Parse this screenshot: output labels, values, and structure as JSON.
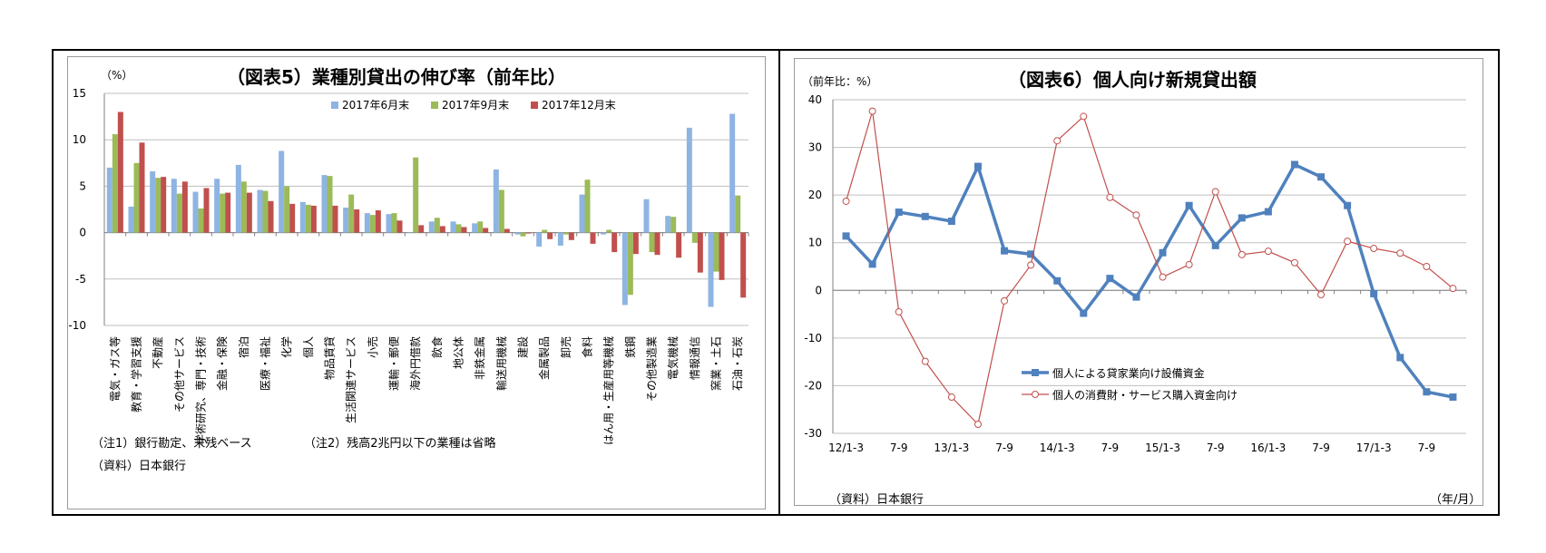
{
  "figure5": {
    "title": "（図表5）業種別貸出の伸び率（前年比）",
    "unit": "（%）",
    "notes": [
      "（注1）銀行勘定、末残ベース",
      "（注2）残高2兆円以下の業種は省略"
    ],
    "source": "（資料）日本銀行"
  },
  "figure6": {
    "title": "（図表6）個人向け新規貸出額",
    "unit": "（前年比：%）",
    "source": "（資料）日本銀行",
    "xunit": "（年/月）"
  },
  "chart_data": [
    {
      "type": "bar",
      "title": "（図表5）業種別貸出の伸び率（前年比）",
      "ylabel": "（%）",
      "ylim": [
        -10,
        15
      ],
      "yticks": [
        -10,
        -5,
        0,
        5,
        10,
        15
      ],
      "grid": true,
      "legend_position": "top-right",
      "categories": [
        "電気・ガス等",
        "教育・学習支援",
        "不動産",
        "その他サービス",
        "学術研究、専門・技術",
        "金融・保険",
        "宿泊",
        "医療・福祉",
        "化学",
        "個人",
        "物品賃貸",
        "生活関連サービス",
        "小売",
        "運輸・郵便",
        "海外円借款",
        "飲食",
        "地公体",
        "非鉄金属",
        "輸送用機械",
        "建設",
        "金属製品",
        "卸売",
        "食料",
        "はん用・生産用等機械",
        "鉄鋼",
        "その他製造業",
        "電気機械",
        "情報通信",
        "窯業・土石",
        "石油・石炭"
      ],
      "series": [
        {
          "name": "2017年6月末",
          "color": "#8eb4e3",
          "values": [
            7.0,
            2.8,
            6.6,
            5.8,
            4.4,
            5.8,
            7.3,
            4.6,
            8.8,
            3.3,
            6.2,
            2.7,
            2.1,
            2.0,
            0.0,
            1.2,
            1.2,
            1.0,
            6.8,
            -0.2,
            -1.5,
            -1.4,
            4.1,
            -0.2,
            -7.8,
            3.6,
            1.8,
            11.3,
            -8.0,
            12.8
          ]
        },
        {
          "name": "2017年9月末",
          "color": "#9bbb59",
          "values": [
            10.6,
            7.5,
            5.9,
            4.2,
            2.6,
            4.2,
            5.5,
            4.5,
            5.0,
            3.0,
            6.1,
            4.1,
            1.9,
            2.1,
            8.1,
            1.6,
            0.9,
            1.2,
            4.6,
            -0.4,
            0.3,
            -0.2,
            5.7,
            0.3,
            -6.7,
            -2.1,
            1.7,
            -1.1,
            -4.2,
            4.0
          ]
        },
        {
          "name": "2017年12月末",
          "color": "#c0504d",
          "values": [
            13.0,
            9.7,
            6.0,
            5.5,
            4.8,
            4.3,
            4.3,
            3.4,
            3.1,
            2.9,
            2.9,
            2.5,
            2.4,
            1.3,
            0.8,
            0.7,
            0.6,
            0.5,
            0.4,
            -0.1,
            -0.7,
            -0.8,
            -1.2,
            -2.1,
            -2.3,
            -2.4,
            -2.7,
            -4.3,
            -5.1,
            -7.0
          ]
        }
      ]
    },
    {
      "type": "line",
      "title": "（図表6）個人向け新規貸出額",
      "ylabel": "（前年比：%）",
      "xlabel": "（年/月）",
      "ylim": [
        -30,
        40
      ],
      "yticks": [
        -30,
        -20,
        -10,
        0,
        10,
        20,
        30,
        40
      ],
      "grid": true,
      "legend_position": "bottom-center",
      "x": [
        "12/1-3",
        "12/4-6",
        "12/7-9",
        "12/10-12",
        "13/1-3",
        "13/4-6",
        "13/7-9",
        "13/10-12",
        "14/1-3",
        "14/4-6",
        "14/7-9",
        "14/10-12",
        "15/1-3",
        "15/4-6",
        "15/7-9",
        "15/10-12",
        "16/1-3",
        "16/4-6",
        "16/7-9",
        "16/10-12",
        "17/1-3",
        "17/4-6",
        "17/7-9",
        "17/10-12"
      ],
      "xtick_labels": [
        "12/1-3",
        "7-9",
        "13/1-3",
        "7-9",
        "14/1-3",
        "7-9",
        "15/1-3",
        "7-9",
        "16/1-3",
        "7-9",
        "17/1-3",
        "7-9"
      ],
      "series": [
        {
          "name": "個人による貸家業向け設備資金",
          "color": "#4f81bd",
          "marker": "square",
          "values": [
            11.4,
            5.5,
            16.4,
            15.5,
            14.5,
            26.0,
            8.3,
            7.6,
            2.0,
            -4.8,
            2.5,
            -1.4,
            7.9,
            17.8,
            9.4,
            15.2,
            16.5,
            26.4,
            23.8,
            17.8,
            -0.7,
            -14.1,
            -21.3,
            -22.4
          ]
        },
        {
          "name": "個人の消費財・サービス購入資金向け",
          "color": "#c0504d",
          "marker": "circle",
          "values": [
            18.7,
            37.6,
            -4.5,
            -14.9,
            -22.4,
            -28.1,
            -2.2,
            5.3,
            31.4,
            36.5,
            19.5,
            15.8,
            2.8,
            5.4,
            20.7,
            7.5,
            8.2,
            5.8,
            -0.9,
            10.3,
            8.8,
            7.8,
            5.0,
            0.4
          ]
        }
      ]
    }
  ]
}
